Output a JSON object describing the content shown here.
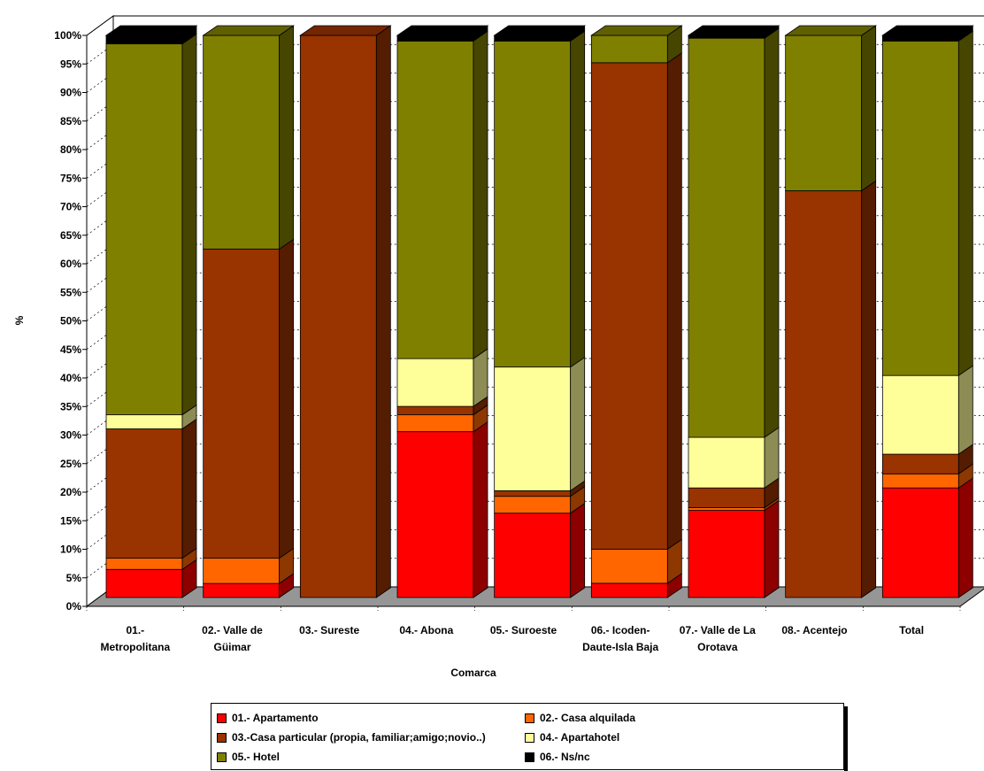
{
  "chart_data": {
    "type": "bar",
    "stacked": true,
    "percent_stacked": true,
    "three_d": true,
    "ylabel": "%",
    "xlabel": "Comarca",
    "ylim": [
      0,
      100
    ],
    "yticks": [
      "0%",
      "5%",
      "10%",
      "15%",
      "20%",
      "25%",
      "30%",
      "35%",
      "40%",
      "45%",
      "50%",
      "55%",
      "60%",
      "65%",
      "70%",
      "75%",
      "80%",
      "85%",
      "90%",
      "95%",
      "100%"
    ],
    "grid": true,
    "legend_position": "bottom",
    "categories": [
      [
        "01.-",
        "Metropolitana"
      ],
      [
        "02.- Valle de",
        "Güimar"
      ],
      [
        "03.- Sureste"
      ],
      [
        "04.- Abona"
      ],
      [
        "05.- Suroeste"
      ],
      [
        "06.- Icoden-",
        "Daute-Isla Baja"
      ],
      [
        "07.- Valle de La",
        "Orotava"
      ],
      [
        "08.- Acentejo"
      ],
      [
        "Total"
      ]
    ],
    "series": [
      {
        "name": "01.- Apartamento",
        "color": "#ff0000",
        "values": [
          5,
          2.5,
          0,
          29.5,
          15,
          2.5,
          15.5,
          0,
          19.5
        ]
      },
      {
        "name": "02.- Casa alquilada",
        "color": "#ff6600",
        "values": [
          2,
          4.5,
          0,
          3,
          3,
          6,
          0.5,
          0,
          2.5
        ]
      },
      {
        "name": "03.-Casa particular (propia, familiar;amigo;novio..)",
        "color": "#993300",
        "values": [
          23,
          55,
          100,
          1.5,
          1,
          85.5,
          3.5,
          72,
          3.5
        ]
      },
      {
        "name": "04.- Apartahotel",
        "color": "#ffff99",
        "values": [
          2.5,
          0,
          0,
          8.5,
          22,
          0,
          9,
          0,
          14
        ]
      },
      {
        "name": "05.- Hotel",
        "color": "#808000",
        "values": [
          66,
          38,
          0,
          56.5,
          58,
          4.8,
          71,
          27.5,
          59.5
        ]
      },
      {
        "name": "06.- Ns/nc",
        "color": "#000000",
        "values": [
          1.5,
          0,
          0,
          1,
          1,
          0,
          0.5,
          0,
          1
        ]
      }
    ]
  }
}
